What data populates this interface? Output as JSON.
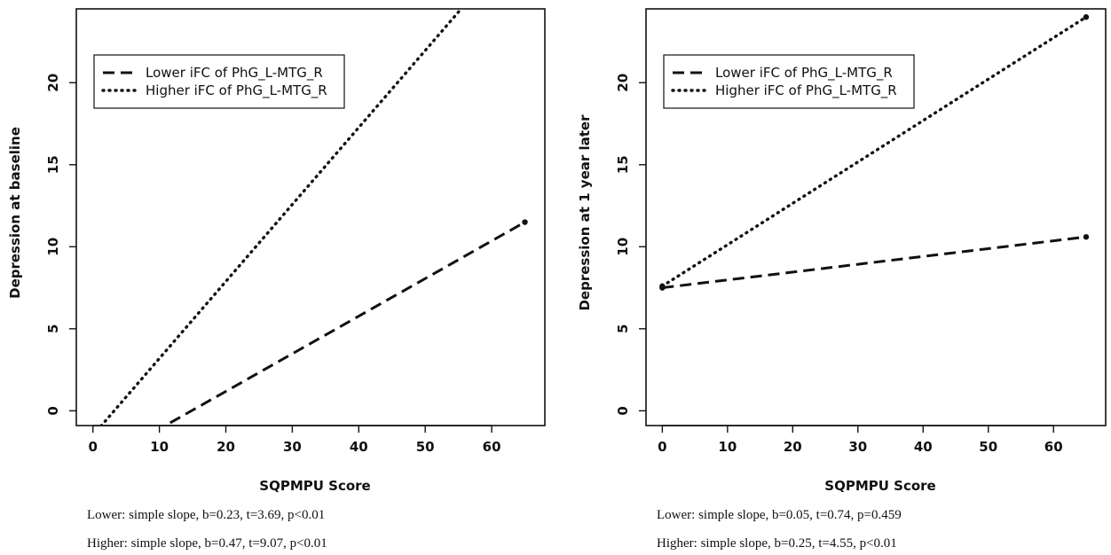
{
  "chart_data": [
    {
      "type": "line",
      "xlabel": "SQPMPU Score",
      "ylabel": "Depression at baseline",
      "xlim": [
        -2.5,
        68
      ],
      "ylim": [
        -0.9,
        24.5
      ],
      "xticks": [
        0,
        10,
        20,
        30,
        40,
        50,
        60
      ],
      "yticks": [
        0,
        5,
        10,
        15,
        20
      ],
      "legend": {
        "position": "top-left",
        "entries": [
          "Lower iFC of PhG_L-MTG_R",
          "Higher iFC of PhG_L-MTG_R"
        ]
      },
      "series": [
        {
          "name": "Lower iFC of PhG_L-MTG_R",
          "style": "dashed",
          "x": [
            0,
            65
          ],
          "y": [
            -3.4,
            11.5
          ],
          "point_at_end": true
        },
        {
          "name": "Higher iFC of PhG_L-MTG_R",
          "style": "dotted",
          "x": [
            0,
            65
          ],
          "y": [
            -1.5,
            29
          ],
          "point_at_end": false
        }
      ],
      "notes": [
        "Lower: simple slope, b=0.23, t=3.69, p<0.01",
        "Higher: simple slope, b=0.47, t=9.07, p<0.01"
      ]
    },
    {
      "type": "line",
      "xlabel": "SQPMPU Score",
      "ylabel": "Depression at 1 year later",
      "xlim": [
        -2.5,
        68
      ],
      "ylim": [
        -0.9,
        24.5
      ],
      "xticks": [
        0,
        10,
        20,
        30,
        40,
        50,
        60
      ],
      "yticks": [
        0,
        5,
        10,
        15,
        20
      ],
      "legend": {
        "position": "top-left",
        "entries": [
          "Lower iFC of PhG_L-MTG_R",
          "Higher iFC of PhG_L-MTG_R"
        ]
      },
      "series": [
        {
          "name": "Lower iFC of PhG_L-MTG_R",
          "style": "dashed",
          "x": [
            0,
            65
          ],
          "y": [
            7.5,
            10.6
          ],
          "point_at_end": true
        },
        {
          "name": "Higher iFC of PhG_L-MTG_R",
          "style": "dotted",
          "x": [
            0,
            65
          ],
          "y": [
            7.6,
            24.0
          ],
          "point_at_end": true
        }
      ],
      "notes": [
        "Lower: simple slope, b=0.05, t=0.74, p=0.459",
        "Higher: simple slope, b=0.25, t=4.55, p<0.01"
      ]
    }
  ]
}
